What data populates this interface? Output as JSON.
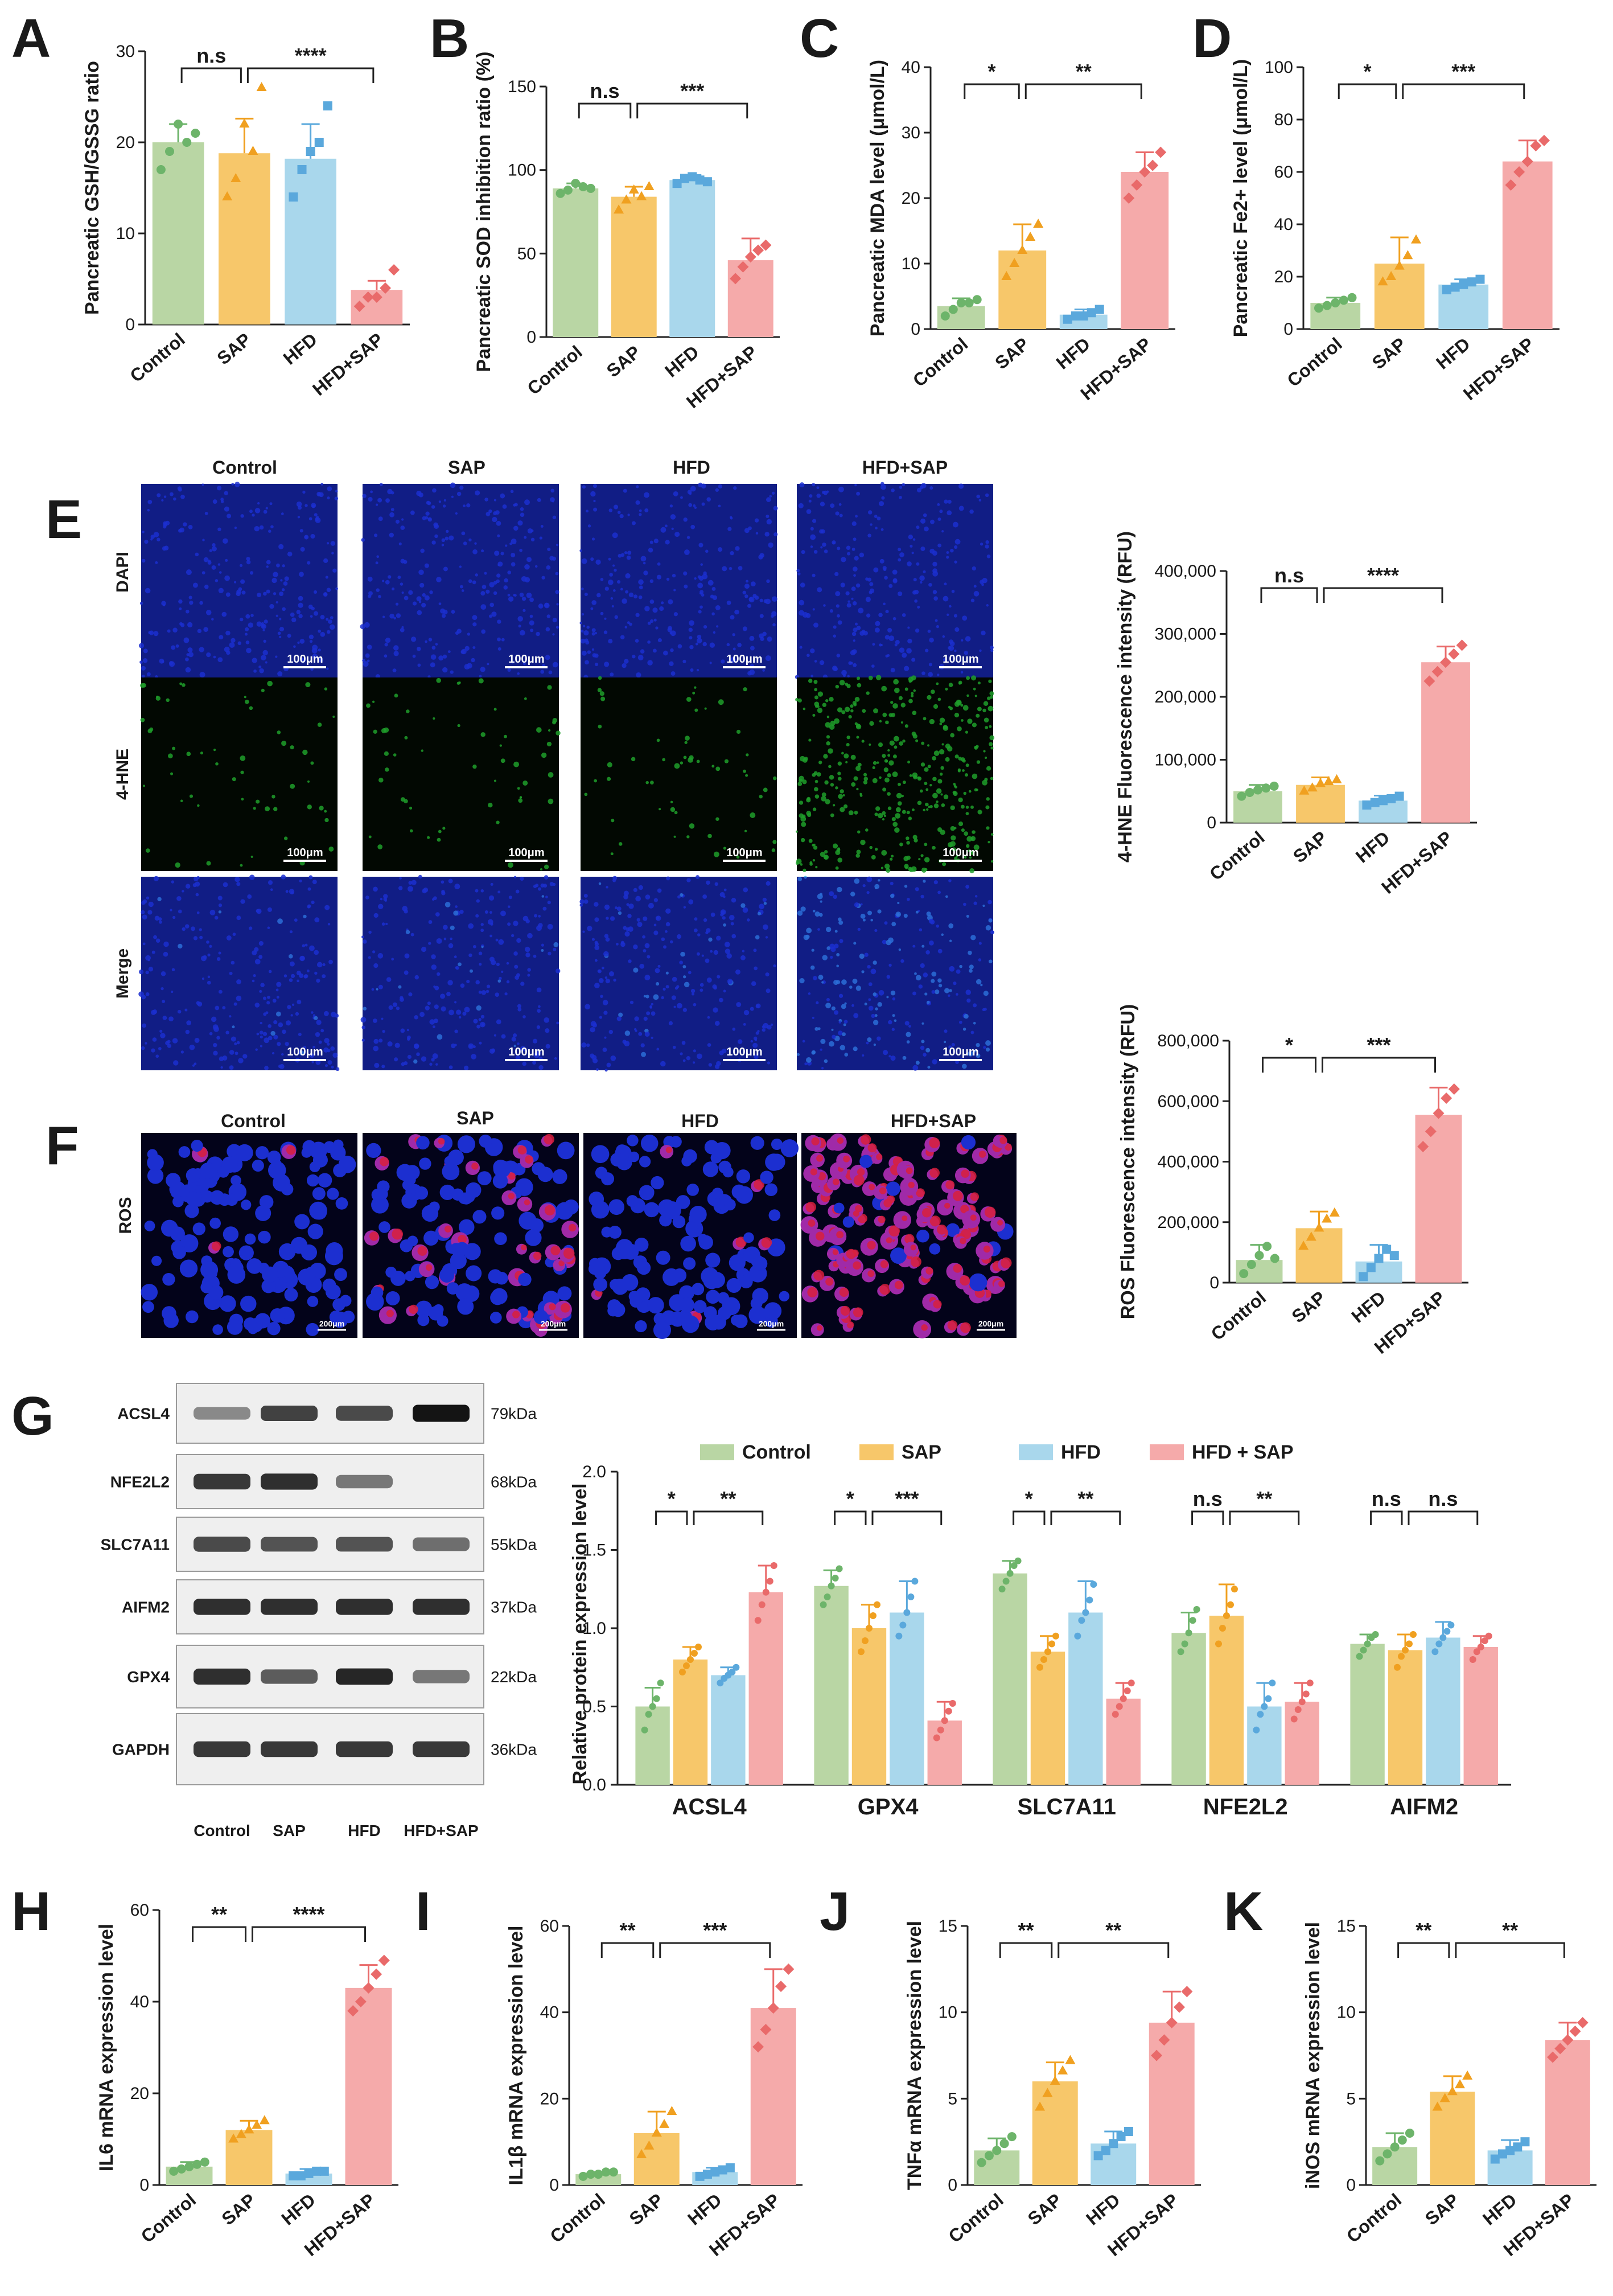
{
  "colors": {
    "Control": "#b9d6a4",
    "SAP": "#f7c76a",
    "HFD": "#a9d7ec",
    "HFD+SAP": "#f5aaaa",
    "Control_dot": "#6db46a",
    "SAP_dot": "#f0a020",
    "HFD_dot": "#5aa8dc",
    "HFD+SAP_dot": "#e96a6a",
    "dapi": "#1c2fd0",
    "hne": "#1f9e2a",
    "ros_red": "#d8203c"
  },
  "groups": [
    "Control",
    "SAP",
    "HFD",
    "HFD+SAP"
  ],
  "panels": {
    "A": "A",
    "B": "B",
    "C": "C",
    "D": "D",
    "E": "E",
    "F": "F",
    "G": "G",
    "H": "H",
    "I": "I",
    "J": "J",
    "K": "K"
  },
  "micro": {
    "columns": [
      "Control",
      "SAP",
      "HFD",
      "HFD+SAP"
    ],
    "rows_E": [
      "DAPI",
      "4-HNE",
      "Merge"
    ],
    "scale_E": "100μm",
    "row_F": "ROS",
    "scale_F": "200μm"
  },
  "western": {
    "proteins": [
      "ACSL4",
      "NFE2L2",
      "SLC7A11",
      "AIFM2",
      "GPX4",
      "GAPDH"
    ],
    "kda": [
      "79kDa",
      "68kDa",
      "55kDa",
      "37kDa",
      "22kDa",
      "36kDa"
    ],
    "lanes": [
      "Control",
      "SAP",
      "HFD",
      "HFD+SAP"
    ],
    "band_strength": [
      [
        0.35,
        0.75,
        0.7,
        1.0
      ],
      [
        0.8,
        0.85,
        0.45,
        0.0
      ],
      [
        0.7,
        0.65,
        0.65,
        0.5
      ],
      [
        0.85,
        0.85,
        0.85,
        0.85
      ],
      [
        0.85,
        0.6,
        0.9,
        0.45
      ],
      [
        0.8,
        0.8,
        0.8,
        0.8
      ]
    ]
  },
  "chart_data": [
    {
      "id": "A",
      "type": "bar",
      "ylabel": "Pancreatic GSH/GSSG ratio",
      "categories": [
        "Control",
        "SAP",
        "HFD",
        "HFD+SAP"
      ],
      "values": [
        20,
        18.8,
        18.2,
        3.8
      ],
      "errors": [
        2,
        3.8,
        3.8,
        1
      ],
      "points": [
        [
          17,
          19,
          22,
          20,
          21
        ],
        [
          14,
          16,
          22,
          19,
          26
        ],
        [
          14,
          17,
          19,
          20,
          24
        ],
        [
          2,
          3,
          3,
          4,
          6
        ]
      ],
      "ylim": [
        0,
        30
      ],
      "yticks": [
        0,
        10,
        20,
        30
      ],
      "sig": [
        {
          "from": 0,
          "to": 1,
          "label": "n.s"
        },
        {
          "from": 1,
          "to": 3,
          "label": "****"
        }
      ]
    },
    {
      "id": "B",
      "type": "bar",
      "ylabel": "Pancreatic SOD inhibition ratio (%)",
      "categories": [
        "Control",
        "SAP",
        "HFD",
        "HFD+SAP"
      ],
      "values": [
        89,
        84,
        94,
        46
      ],
      "errors": [
        3,
        6,
        3,
        13
      ],
      "points": [
        [
          86,
          88,
          92,
          90,
          89
        ],
        [
          76,
          82,
          88,
          84,
          90
        ],
        [
          92,
          95,
          96,
          94,
          93
        ],
        [
          35,
          42,
          48,
          52,
          55
        ]
      ],
      "ylim": [
        0,
        150
      ],
      "yticks": [
        0,
        50,
        100,
        150
      ],
      "sig": [
        {
          "from": 0,
          "to": 1,
          "label": "n.s"
        },
        {
          "from": 1,
          "to": 3,
          "label": "***"
        }
      ]
    },
    {
      "id": "C",
      "type": "bar",
      "ylabel": "Pancreatic MDA level (μmol/L)",
      "categories": [
        "Control",
        "SAP",
        "HFD",
        "HFD+SAP"
      ],
      "values": [
        3.5,
        12,
        2.2,
        24
      ],
      "errors": [
        1.2,
        4,
        0.8,
        3
      ],
      "points": [
        [
          2,
          3,
          4,
          4,
          4.5
        ],
        [
          8,
          10,
          12,
          14,
          16
        ],
        [
          1.5,
          2,
          2,
          2.5,
          3
        ],
        [
          20,
          22,
          24,
          25,
          27
        ]
      ],
      "ylim": [
        0,
        40
      ],
      "yticks": [
        0,
        10,
        20,
        30,
        40
      ],
      "sig": [
        {
          "from": 0,
          "to": 1,
          "label": "*"
        },
        {
          "from": 1,
          "to": 3,
          "label": "**"
        }
      ]
    },
    {
      "id": "D",
      "type": "bar",
      "ylabel": "Pancreatic Fe2+ level (μmol/L)",
      "categories": [
        "Control",
        "SAP",
        "HFD",
        "HFD+SAP"
      ],
      "values": [
        10,
        25,
        17,
        64
      ],
      "errors": [
        2,
        10,
        2,
        8
      ],
      "points": [
        [
          8,
          9,
          10,
          11,
          12
        ],
        [
          18,
          20,
          24,
          28,
          34
        ],
        [
          15,
          16,
          17,
          18,
          19
        ],
        [
          55,
          60,
          64,
          70,
          72
        ]
      ],
      "ylim": [
        0,
        100
      ],
      "yticks": [
        0,
        20,
        40,
        60,
        80,
        100
      ],
      "sig": [
        {
          "from": 0,
          "to": 1,
          "label": "*"
        },
        {
          "from": 1,
          "to": 3,
          "label": "***"
        }
      ]
    },
    {
      "id": "E",
      "type": "bar",
      "ylabel": "4-HNE Fluorescence intensity (RFU)",
      "categories": [
        "Control",
        "SAP",
        "HFD",
        "HFD+SAP"
      ],
      "values": [
        50000,
        60000,
        35000,
        255000
      ],
      "errors": [
        10000,
        12000,
        8000,
        25000
      ],
      "points": [
        [
          42000,
          48000,
          52000,
          55000,
          58000
        ],
        [
          50000,
          55000,
          62000,
          65000,
          68000
        ],
        [
          28000,
          32000,
          35000,
          38000,
          42000
        ],
        [
          225000,
          240000,
          255000,
          268000,
          282000
        ]
      ],
      "ylim": [
        0,
        400000
      ],
      "yticks": [
        0,
        100000,
        200000,
        300000,
        400000
      ],
      "yticklabels": [
        "0",
        "100,000",
        "200,000",
        "300,000",
        "400,000"
      ],
      "sig": [
        {
          "from": 0,
          "to": 1,
          "label": "n.s"
        },
        {
          "from": 1,
          "to": 3,
          "label": "****"
        }
      ]
    },
    {
      "id": "F",
      "type": "bar",
      "ylabel": "ROS Fluorescence intensity (RFU)",
      "categories": [
        "Control",
        "SAP",
        "HFD",
        "HFD+SAP"
      ],
      "values": [
        75000,
        180000,
        70000,
        555000
      ],
      "errors": [
        50000,
        55000,
        55000,
        90000
      ],
      "points": [
        [
          30000,
          60000,
          90000,
          120000,
          80000
        ],
        [
          120000,
          150000,
          180000,
          210000,
          230000
        ],
        [
          20000,
          50000,
          80000,
          110000,
          90000
        ],
        [
          450000,
          500000,
          560000,
          610000,
          640000
        ]
      ],
      "ylim": [
        0,
        800000
      ],
      "yticks": [
        0,
        200000,
        400000,
        600000,
        800000
      ],
      "yticklabels": [
        "0",
        "200,000",
        "400,000",
        "600,000",
        "800,000"
      ],
      "sig": [
        {
          "from": 0,
          "to": 1,
          "label": "*"
        },
        {
          "from": 1,
          "to": 3,
          "label": "***"
        }
      ]
    },
    {
      "id": "G",
      "type": "bar",
      "ylabel": "Relative protein expression level",
      "legend": [
        "Control",
        "SAP",
        "HFD",
        "HFD + SAP"
      ],
      "categories": [
        "ACSL4",
        "GPX4",
        "SLC7A11",
        "NFE2L2",
        "AIFM2"
      ],
      "series": [
        {
          "name": "Control",
          "values": [
            0.5,
            1.27,
            1.35,
            0.97,
            0.9
          ],
          "errors": [
            0.12,
            0.1,
            0.08,
            0.13,
            0.06
          ],
          "points": [
            [
              0.35,
              0.45,
              0.5,
              0.55,
              0.65
            ],
            [
              1.15,
              1.2,
              1.27,
              1.32,
              1.38
            ],
            [
              1.25,
              1.3,
              1.35,
              1.4,
              1.43
            ],
            [
              0.85,
              0.9,
              0.97,
              1.05,
              1.12
            ],
            [
              0.82,
              0.86,
              0.9,
              0.94,
              0.96
            ]
          ]
        },
        {
          "name": "SAP",
          "values": [
            0.8,
            1.0,
            0.85,
            1.08,
            0.86
          ],
          "errors": [
            0.08,
            0.15,
            0.1,
            0.2,
            0.1
          ],
          "points": [
            [
              0.72,
              0.76,
              0.8,
              0.84,
              0.88
            ],
            [
              0.85,
              0.92,
              1.0,
              1.08,
              1.15
            ],
            [
              0.75,
              0.8,
              0.85,
              0.9,
              0.95
            ],
            [
              0.9,
              1.0,
              1.08,
              1.15,
              1.25
            ],
            [
              0.75,
              0.82,
              0.86,
              0.9,
              0.96
            ]
          ]
        },
        {
          "name": "HFD",
          "values": [
            0.7,
            1.1,
            1.1,
            0.5,
            0.94
          ],
          "errors": [
            0.05,
            0.2,
            0.2,
            0.15,
            0.1
          ],
          "points": [
            [
              0.65,
              0.68,
              0.7,
              0.72,
              0.75
            ],
            [
              0.95,
              1.02,
              1.1,
              1.2,
              1.3
            ],
            [
              0.95,
              1.05,
              1.1,
              1.18,
              1.28
            ],
            [
              0.35,
              0.45,
              0.5,
              0.55,
              0.65
            ],
            [
              0.85,
              0.9,
              0.94,
              0.98,
              1.02
            ]
          ]
        },
        {
          "name": "HFD + SAP",
          "values": [
            1.23,
            0.41,
            0.55,
            0.53,
            0.88
          ],
          "errors": [
            0.17,
            0.12,
            0.1,
            0.12,
            0.07
          ],
          "points": [
            [
              1.05,
              1.15,
              1.23,
              1.3,
              1.4
            ],
            [
              0.3,
              0.35,
              0.41,
              0.47,
              0.52
            ],
            [
              0.45,
              0.5,
              0.55,
              0.6,
              0.65
            ],
            [
              0.42,
              0.48,
              0.53,
              0.58,
              0.65
            ],
            [
              0.8,
              0.85,
              0.88,
              0.92,
              0.95
            ]
          ]
        }
      ],
      "ylim": [
        0,
        2.0
      ],
      "yticks": [
        0,
        0.5,
        1.0,
        1.5,
        2.0
      ],
      "yticklabels": [
        "0.0",
        "0.5",
        "1.0",
        "1.5",
        "2.0"
      ],
      "sig": [
        [
          "*",
          "**"
        ],
        [
          "*",
          "***"
        ],
        [
          "*",
          "**"
        ],
        [
          "n.s",
          "**"
        ],
        [
          "n.s",
          "n.s"
        ]
      ]
    },
    {
      "id": "H",
      "type": "bar",
      "ylabel": "IL6 mRNA expression level",
      "categories": [
        "Control",
        "SAP",
        "HFD",
        "HFD+SAP"
      ],
      "values": [
        4,
        12,
        2.5,
        43
      ],
      "errors": [
        1,
        2,
        1,
        5
      ],
      "points": [
        [
          3,
          3.5,
          4,
          4.5,
          5
        ],
        [
          10,
          11,
          12,
          13,
          14
        ],
        [
          2,
          2,
          2.5,
          3,
          3
        ],
        [
          38,
          40,
          43,
          46,
          49
        ]
      ],
      "ylim": [
        0,
        60
      ],
      "yticks": [
        0,
        20,
        40,
        60
      ],
      "sig": [
        {
          "from": 0,
          "to": 1,
          "label": "**"
        },
        {
          "from": 1,
          "to": 3,
          "label": "****"
        }
      ]
    },
    {
      "id": "I",
      "type": "bar",
      "ylabel": "IL1β mRNA expression level",
      "categories": [
        "Control",
        "SAP",
        "HFD",
        "HFD+SAP"
      ],
      "values": [
        2.5,
        12,
        3,
        41
      ],
      "errors": [
        0.5,
        5,
        1,
        9
      ],
      "points": [
        [
          2,
          2.5,
          2.5,
          3,
          3
        ],
        [
          7,
          9,
          12,
          14,
          17
        ],
        [
          2,
          2.5,
          3,
          3.5,
          4
        ],
        [
          32,
          36,
          41,
          46,
          50
        ]
      ],
      "ylim": [
        0,
        60
      ],
      "yticks": [
        0,
        20,
        40,
        60
      ],
      "sig": [
        {
          "from": 0,
          "to": 1,
          "label": "**"
        },
        {
          "from": 1,
          "to": 3,
          "label": "***"
        }
      ]
    },
    {
      "id": "J",
      "type": "bar",
      "ylabel": "TNFα mRNA expression level",
      "categories": [
        "Control",
        "SAP",
        "HFD",
        "HFD+SAP"
      ],
      "values": [
        2,
        6,
        2.4,
        9.4
      ],
      "errors": [
        0.7,
        1.1,
        0.7,
        1.8
      ],
      "points": [
        [
          1.3,
          1.7,
          2,
          2.4,
          2.8
        ],
        [
          4.5,
          5.3,
          6,
          6.6,
          7.2
        ],
        [
          1.7,
          2,
          2.4,
          2.8,
          3.1
        ],
        [
          7.5,
          8.4,
          9.4,
          10.3,
          11.2
        ]
      ],
      "ylim": [
        0,
        15
      ],
      "yticks": [
        0,
        5,
        10,
        15
      ],
      "sig": [
        {
          "from": 0,
          "to": 1,
          "label": "**"
        },
        {
          "from": 1,
          "to": 3,
          "label": "**"
        }
      ]
    },
    {
      "id": "K",
      "type": "bar",
      "ylabel": "iNOS mRNA expression level",
      "categories": [
        "Control",
        "SAP",
        "HFD",
        "HFD+SAP"
      ],
      "values": [
        2.2,
        5.4,
        2,
        8.4
      ],
      "errors": [
        0.8,
        0.9,
        0.6,
        1
      ],
      "points": [
        [
          1.4,
          1.8,
          2.2,
          2.6,
          3
        ],
        [
          4.5,
          5,
          5.4,
          5.8,
          6.3
        ],
        [
          1.5,
          1.8,
          2,
          2.2,
          2.5
        ],
        [
          7.4,
          7.9,
          8.4,
          8.9,
          9.4
        ]
      ],
      "ylim": [
        0,
        15
      ],
      "yticks": [
        0,
        5,
        10,
        15
      ],
      "sig": [
        {
          "from": 0,
          "to": 1,
          "label": "**"
        },
        {
          "from": 1,
          "to": 3,
          "label": "**"
        }
      ]
    }
  ]
}
